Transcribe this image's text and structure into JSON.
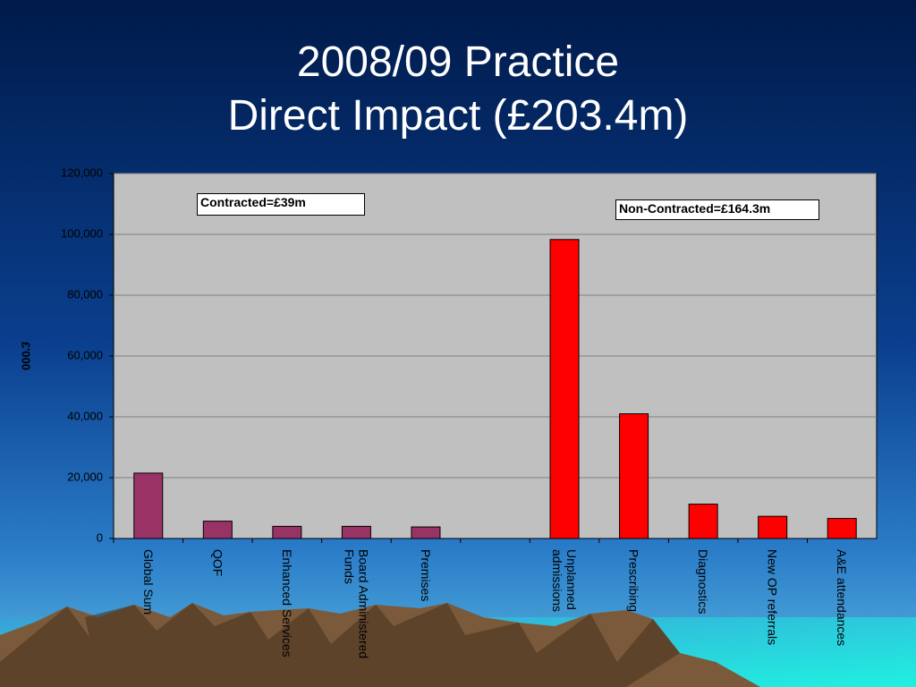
{
  "chart_data": {
    "type": "bar",
    "title": "2008/09 Practice\nDirect Impact (£203.4m)",
    "y_label": "£'000",
    "annotations": [
      "Contracted=£39m",
      "Non-Contracted=£164.3m"
    ],
    "categories": [
      "Global Sum",
      "QOF",
      "Enhanced Services",
      "Board Administered\nFunds",
      "Premises",
      null,
      "Unplanned\nadmissions",
      "Prescribing",
      "Diagnostics",
      "New OP referrals",
      "A&E attendances"
    ],
    "values": [
      21500,
      5700,
      4000,
      4000,
      3800,
      null,
      98300,
      41000,
      11300,
      7300,
      6600
    ],
    "colors": [
      "#993366",
      "#993366",
      "#993366",
      "#993366",
      "#993366",
      null,
      "#ff0000",
      "#ff0000",
      "#ff0000",
      "#ff0000",
      "#ff0000"
    ],
    "ylim": [
      0,
      120000
    ],
    "yticks": [
      0,
      {
        "value": 20000,
        "label": "20,000"
      },
      {
        "value": 40000,
        "label": "40,000"
      },
      {
        "value": 60000,
        "label": "60,000"
      },
      {
        "value": 80000,
        "label": "80,000"
      },
      {
        "value": 100000,
        "label": "100,000"
      },
      {
        "value": 120000,
        "label": "120,000"
      }
    ],
    "grid": true
  }
}
